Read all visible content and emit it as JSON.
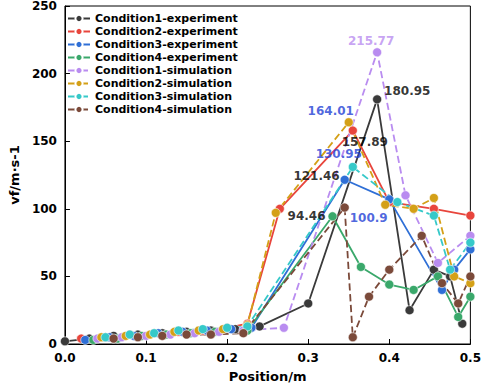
{
  "chart_data": {
    "type": "line",
    "x_label": "Position/m",
    "y_label": "vf/m·s-1",
    "xlim": [
      0,
      0.5
    ],
    "xticks": [
      {
        "value": 0,
        "label": "0.0"
      },
      {
        "value": 0.1,
        "label": "0.1"
      },
      {
        "value": 0.2,
        "label": "0.2"
      },
      {
        "value": 0.3,
        "label": "0.3"
      },
      {
        "value": 0.4,
        "label": "0.4"
      },
      {
        "value": 0.5,
        "label": "0.5"
      }
    ],
    "ylim": [
      0,
      250
    ],
    "yticks": [
      0,
      50,
      100,
      150,
      200,
      250
    ],
    "grid": false,
    "legend": "upper left",
    "marker": "circle",
    "series": [
      {
        "name": "Condition1-experiment",
        "color": "#3a3a3a",
        "line_style": "solid",
        "x": [
          0,
          0.03,
          0.06,
          0.09,
          0.12,
          0.15,
          0.18,
          0.21,
          0.24,
          0.3,
          0.385,
          0.425,
          0.455,
          0.475,
          0.49
        ],
        "values": [
          2,
          4,
          6,
          7,
          8,
          9,
          10,
          11,
          13,
          30,
          180.95,
          25,
          55,
          50,
          15
        ]
      },
      {
        "name": "Condition2-experiment",
        "color": "#e8453c",
        "line_style": "solid",
        "x": [
          0.02,
          0.05,
          0.08,
          0.11,
          0.14,
          0.17,
          0.2,
          0.225,
          0.265,
          0.355,
          0.4,
          0.455,
          0.5
        ],
        "values": [
          4,
          5,
          7,
          8,
          9,
          10,
          12,
          15,
          100,
          157.89,
          105,
          100,
          95
        ]
      },
      {
        "name": "Condition3-experiment",
        "color": "#2f6fd6",
        "line_style": "solid",
        "x": [
          0.025,
          0.055,
          0.085,
          0.115,
          0.145,
          0.175,
          0.205,
          0.23,
          0.345,
          0.4,
          0.465,
          0.48,
          0.5
        ],
        "values": [
          3,
          5,
          6,
          8,
          9,
          10,
          11,
          12,
          121.46,
          107,
          40,
          55,
          70
        ]
      },
      {
        "name": "Condition4-experiment",
        "color": "#3aa86b",
        "line_style": "solid",
        "x": [
          0.035,
          0.065,
          0.095,
          0.125,
          0.155,
          0.185,
          0.225,
          0.33,
          0.365,
          0.4,
          0.43,
          0.46,
          0.485,
          0.5
        ],
        "values": [
          3,
          4,
          6,
          7,
          8,
          9,
          10,
          94.46,
          57,
          44,
          40,
          50,
          20,
          35
        ]
      },
      {
        "name": "Condition1-simulation",
        "color": "#b98cf0",
        "line_style": "dashed",
        "x": [
          0.04,
          0.07,
          0.1,
          0.13,
          0.16,
          0.19,
          0.22,
          0.27,
          0.385,
          0.42,
          0.46,
          0.5
        ],
        "values": [
          4,
          5,
          6,
          7,
          8,
          9,
          10,
          12,
          215.77,
          110,
          60,
          80
        ]
      },
      {
        "name": "Condition2-simulation",
        "color": "#d4a017",
        "line_style": "dashed",
        "x": [
          0.045,
          0.075,
          0.105,
          0.135,
          0.165,
          0.195,
          0.225,
          0.26,
          0.35,
          0.395,
          0.43,
          0.455,
          0.48,
          0.5
        ],
        "values": [
          5,
          6,
          7,
          9,
          10,
          11,
          14,
          97,
          164.01,
          103,
          100,
          108,
          50,
          45
        ]
      },
      {
        "name": "Condition3-simulation",
        "color": "#36c9c9",
        "line_style": "dashed",
        "x": [
          0.05,
          0.08,
          0.11,
          0.14,
          0.17,
          0.2,
          0.225,
          0.355,
          0.41,
          0.455,
          0.475,
          0.5
        ],
        "values": [
          5,
          7,
          8,
          10,
          11,
          12,
          13,
          130.95,
          105,
          95,
          55,
          75
        ]
      },
      {
        "name": "Condition4-simulation",
        "color": "#7b4a3a",
        "line_style": "dashed",
        "x": [
          0.06,
          0.09,
          0.12,
          0.15,
          0.18,
          0.22,
          0.345,
          0.355,
          0.375,
          0.4,
          0.44,
          0.465,
          0.485,
          0.5
        ],
        "values": [
          4,
          5,
          6,
          7,
          7,
          8,
          100.9,
          5,
          35,
          55,
          80,
          45,
          30,
          50
        ]
      }
    ],
    "annotations": [
      {
        "text": "215.77",
        "x": 0.385,
        "y": 215.77,
        "color": "#b98cf0"
      },
      {
        "text": "180.95",
        "x": 0.385,
        "y": 180.95,
        "color": "#000000"
      },
      {
        "text": "164.01",
        "x": 0.35,
        "y": 164.01,
        "color": "#1f3fd6"
      },
      {
        "text": "157.89",
        "x": 0.355,
        "y": 157.89,
        "color": "#000000"
      },
      {
        "text": "130.95",
        "x": 0.355,
        "y": 130.95,
        "color": "#1f3fd6"
      },
      {
        "text": "121.46",
        "x": 0.345,
        "y": 121.46,
        "color": "#000000"
      },
      {
        "text": "100.9",
        "x": 0.345,
        "y": 100.9,
        "color": "#1f3fd6"
      },
      {
        "text": "94.46",
        "x": 0.33,
        "y": 94.46,
        "color": "#000000"
      }
    ]
  }
}
